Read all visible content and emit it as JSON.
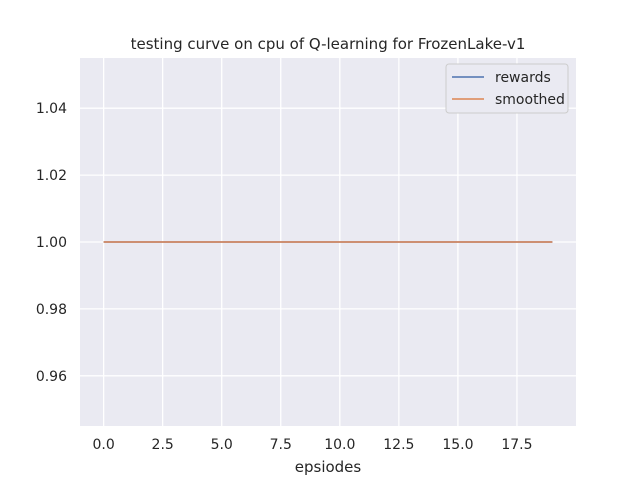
{
  "chart_data": {
    "type": "line",
    "title": "testing curve on cpu of Q-learning for FrozenLake-v1",
    "xlabel": "epsiodes",
    "ylabel": "",
    "xlim": [
      -1.0,
      20.0
    ],
    "ylim": [
      0.945,
      1.055
    ],
    "xticks": [
      0.0,
      2.5,
      5.0,
      7.5,
      10.0,
      12.5,
      15.0,
      17.5
    ],
    "xtick_labels": [
      "0.0",
      "2.5",
      "5.0",
      "7.5",
      "10.0",
      "12.5",
      "15.0",
      "17.5"
    ],
    "yticks": [
      0.96,
      0.98,
      1.0,
      1.02,
      1.04
    ],
    "ytick_labels": [
      "0.96",
      "0.98",
      "1.00",
      "1.02",
      "1.04"
    ],
    "grid": true,
    "legend_position": "top-right",
    "x": [
      0,
      1,
      2,
      3,
      4,
      5,
      6,
      7,
      8,
      9,
      10,
      11,
      12,
      13,
      14,
      15,
      16,
      17,
      18,
      19
    ],
    "series": [
      {
        "name": "rewards",
        "color": "#4c72b0",
        "values": [
          1,
          1,
          1,
          1,
          1,
          1,
          1,
          1,
          1,
          1,
          1,
          1,
          1,
          1,
          1,
          1,
          1,
          1,
          1,
          1
        ]
      },
      {
        "name": "smoothed",
        "color": "#dd8452",
        "values": [
          1,
          1,
          1,
          1,
          1,
          1,
          1,
          1,
          1,
          1,
          1,
          1,
          1,
          1,
          1,
          1,
          1,
          1,
          1,
          1
        ]
      }
    ],
    "colors": {
      "plot_background": "#eaeaf2",
      "grid": "#ffffff",
      "text": "#262626"
    }
  }
}
